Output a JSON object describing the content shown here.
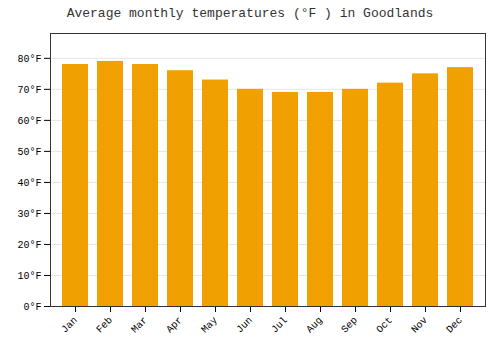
{
  "chart_data": {
    "type": "bar",
    "title": "Average monthly temperatures (°F ) in Goodlands",
    "categories": [
      "Jan",
      "Feb",
      "Mar",
      "Apr",
      "May",
      "Jun",
      "Jul",
      "Aug",
      "Sep",
      "Oct",
      "Nov",
      "Dec"
    ],
    "values": [
      78,
      79,
      78,
      76,
      73,
      70,
      69,
      69,
      70,
      72,
      75,
      77
    ],
    "color": "#F0A000",
    "ylim": [
      0,
      88
    ],
    "yticks": [
      {
        "value": 0,
        "label": "0°F"
      },
      {
        "value": 10,
        "label": "10°F"
      },
      {
        "value": 20,
        "label": "20°F"
      },
      {
        "value": 30,
        "label": "30°F"
      },
      {
        "value": 40,
        "label": "40°F"
      },
      {
        "value": 50,
        "label": "50°F"
      },
      {
        "value": 60,
        "label": "60°F"
      },
      {
        "value": 70,
        "label": "70°F"
      },
      {
        "value": 80,
        "label": "80°F"
      }
    ],
    "grid": true
  }
}
